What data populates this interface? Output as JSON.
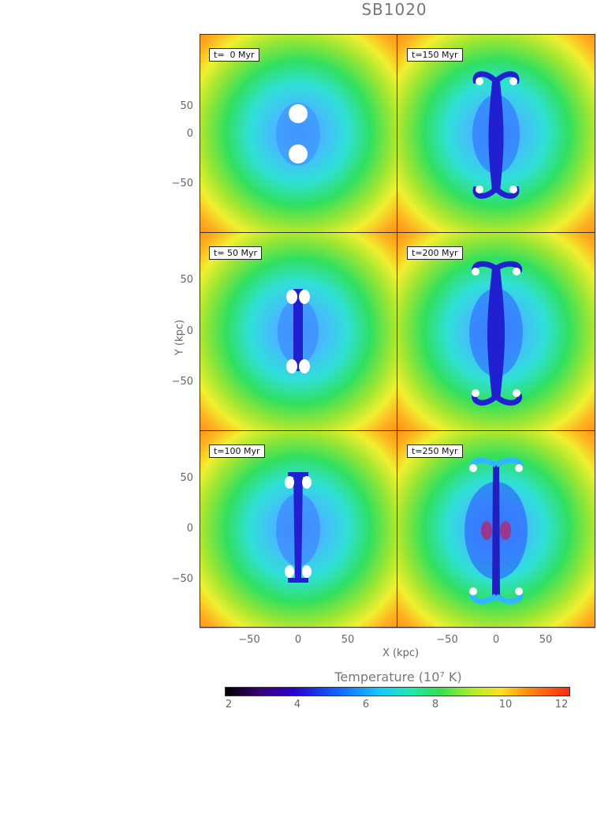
{
  "figure": {
    "title": "SB1020",
    "xlabel": "X (kpc)",
    "ylabel": "Y (kpc)",
    "colorbar": {
      "title": "Temperature (10⁷ K)",
      "ticks": [
        "2",
        "4",
        "6",
        "8",
        "10",
        "12"
      ]
    },
    "yticks": [
      "50",
      "0",
      "−50"
    ],
    "xticks": [
      "−50",
      "0",
      "50"
    ],
    "panels": [
      {
        "label": "t=  0 Myr"
      },
      {
        "label": "t=150 Myr"
      },
      {
        "label": "t= 50 Myr"
      },
      {
        "label": "t=200 Myr"
      },
      {
        "label": "t=100 Myr"
      },
      {
        "label": "t=250 Myr"
      }
    ]
  }
}
